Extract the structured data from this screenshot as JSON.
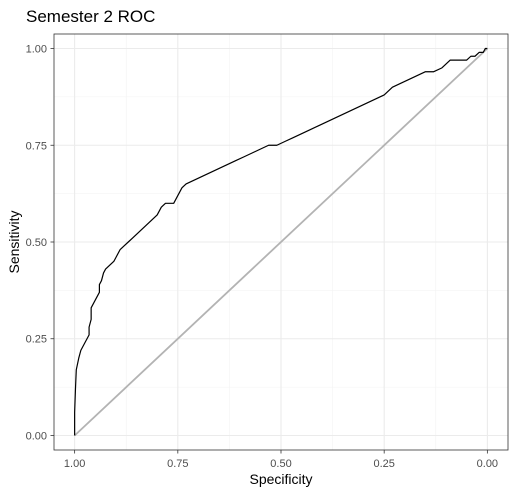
{
  "chart_data": {
    "type": "line",
    "title": "Semester 2 ROC",
    "xlabel": "Specificity",
    "ylabel": "Sensitivity",
    "x_reversed": true,
    "xlim": [
      1.05,
      -0.05
    ],
    "ylim": [
      -0.0375,
      1.0375
    ],
    "x_ticks": [
      "1.00",
      "0.75",
      "0.50",
      "0.25",
      "0.00"
    ],
    "y_ticks": [
      "0.00",
      "0.25",
      "0.50",
      "0.75",
      "1.00"
    ],
    "grid": true,
    "series": [
      {
        "name": "",
        "color": "#000000",
        "points": [
          [
            1.0,
            0.0
          ],
          [
            1.0,
            0.06
          ],
          [
            0.998,
            0.12
          ],
          [
            0.996,
            0.17
          ],
          [
            0.99,
            0.2
          ],
          [
            0.985,
            0.22
          ],
          [
            0.98,
            0.23
          ],
          [
            0.975,
            0.24
          ],
          [
            0.97,
            0.25
          ],
          [
            0.965,
            0.26
          ],
          [
            0.965,
            0.28
          ],
          [
            0.96,
            0.3
          ],
          [
            0.96,
            0.33
          ],
          [
            0.955,
            0.34
          ],
          [
            0.95,
            0.35
          ],
          [
            0.94,
            0.37
          ],
          [
            0.94,
            0.39
          ],
          [
            0.935,
            0.4
          ],
          [
            0.93,
            0.42
          ],
          [
            0.925,
            0.43
          ],
          [
            0.915,
            0.44
          ],
          [
            0.905,
            0.45
          ],
          [
            0.9,
            0.46
          ],
          [
            0.89,
            0.48
          ],
          [
            0.88,
            0.49
          ],
          [
            0.87,
            0.5
          ],
          [
            0.86,
            0.51
          ],
          [
            0.85,
            0.52
          ],
          [
            0.84,
            0.53
          ],
          [
            0.83,
            0.54
          ],
          [
            0.82,
            0.55
          ],
          [
            0.81,
            0.56
          ],
          [
            0.8,
            0.57
          ],
          [
            0.79,
            0.59
          ],
          [
            0.78,
            0.6
          ],
          [
            0.76,
            0.6
          ],
          [
            0.75,
            0.62
          ],
          [
            0.74,
            0.64
          ],
          [
            0.73,
            0.65
          ],
          [
            0.71,
            0.66
          ],
          [
            0.69,
            0.67
          ],
          [
            0.67,
            0.68
          ],
          [
            0.65,
            0.69
          ],
          [
            0.63,
            0.7
          ],
          [
            0.61,
            0.71
          ],
          [
            0.59,
            0.72
          ],
          [
            0.57,
            0.73
          ],
          [
            0.55,
            0.74
          ],
          [
            0.53,
            0.75
          ],
          [
            0.51,
            0.75
          ],
          [
            0.49,
            0.76
          ],
          [
            0.47,
            0.77
          ],
          [
            0.45,
            0.78
          ],
          [
            0.43,
            0.79
          ],
          [
            0.41,
            0.8
          ],
          [
            0.39,
            0.81
          ],
          [
            0.37,
            0.82
          ],
          [
            0.35,
            0.83
          ],
          [
            0.33,
            0.84
          ],
          [
            0.31,
            0.85
          ],
          [
            0.29,
            0.86
          ],
          [
            0.27,
            0.87
          ],
          [
            0.25,
            0.88
          ],
          [
            0.24,
            0.89
          ],
          [
            0.23,
            0.9
          ],
          [
            0.21,
            0.91
          ],
          [
            0.19,
            0.92
          ],
          [
            0.17,
            0.93
          ],
          [
            0.15,
            0.94
          ],
          [
            0.13,
            0.94
          ],
          [
            0.11,
            0.95
          ],
          [
            0.1,
            0.96
          ],
          [
            0.09,
            0.97
          ],
          [
            0.07,
            0.97
          ],
          [
            0.05,
            0.97
          ],
          [
            0.04,
            0.98
          ],
          [
            0.03,
            0.98
          ],
          [
            0.02,
            0.99
          ],
          [
            0.01,
            0.99
          ],
          [
            0.005,
            1.0
          ],
          [
            0.0,
            1.0
          ]
        ]
      },
      {
        "name": "",
        "color": "#b3b3b3",
        "points": [
          [
            1.0,
            0.0
          ],
          [
            0.0,
            1.0
          ]
        ]
      }
    ]
  }
}
